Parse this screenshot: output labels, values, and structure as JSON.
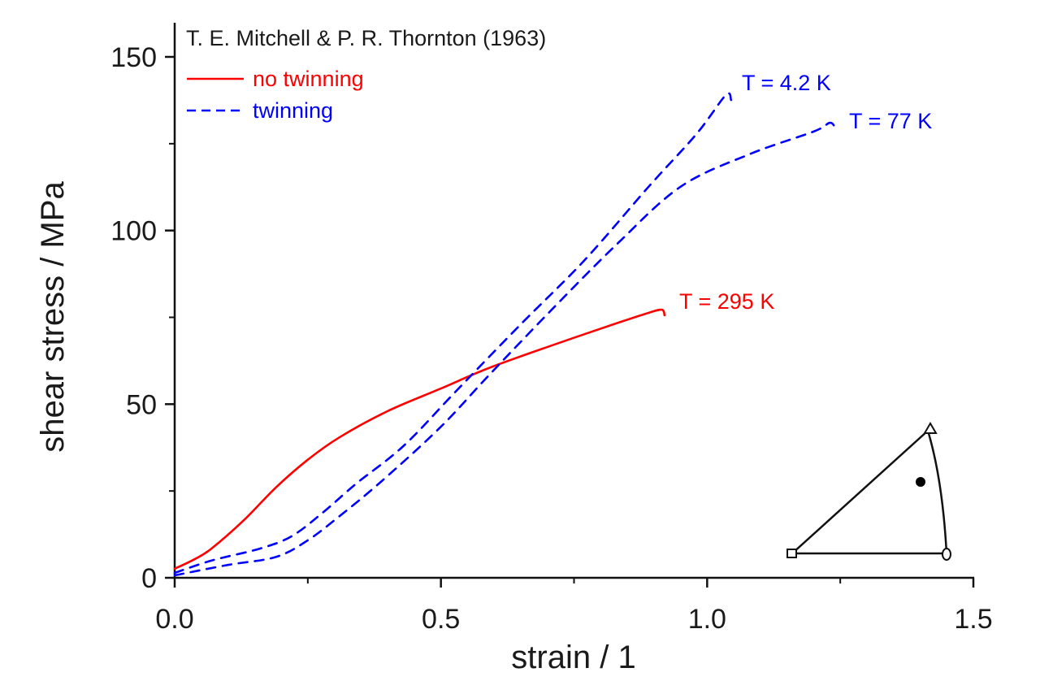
{
  "chart_data": {
    "type": "line",
    "title": "",
    "source_note": "T. E. Mitchell & P. R. Thornton (1963)",
    "xlabel": "strain / 1",
    "ylabel": "shear stress / MPa",
    "xlim": [
      0,
      1.5
    ],
    "ylim": [
      0,
      150
    ],
    "x_major_ticks": [
      0.0,
      0.5,
      1.0,
      1.5
    ],
    "x_tick_labels": [
      "0.0",
      "0.5",
      "1.0",
      "1.5"
    ],
    "x_minor_ticks": [
      0.25,
      0.75,
      1.25
    ],
    "y_major_ticks": [
      0,
      50,
      100,
      150
    ],
    "y_tick_labels": [
      "0",
      "50",
      "100",
      "150"
    ],
    "y_minor_ticks": [
      25,
      75,
      125
    ],
    "grid": false,
    "legend": {
      "placement": "top-left",
      "entries": [
        {
          "label": "no twinning",
          "style": "solid",
          "color": "#ff0000"
        },
        {
          "label": "twinning",
          "style": "dashed",
          "color": "#0000ff"
        }
      ]
    },
    "series": [
      {
        "name": "T = 295 K",
        "style": "solid",
        "color": "#ff0000",
        "x": [
          0.0,
          0.038,
          0.069,
          0.13,
          0.19,
          0.25,
          0.31,
          0.4,
          0.5,
          0.59,
          0.71,
          0.83,
          0.89,
          0.915,
          0.92
        ],
        "y": [
          2.6,
          5.4,
          8.4,
          16.6,
          26.0,
          34.0,
          40.5,
          48.0,
          54.5,
          60.4,
          67.0,
          73.3,
          76.3,
          77.2,
          75.6
        ]
      },
      {
        "name": "T = 4.2 K",
        "style": "dashed",
        "color": "#0000ff",
        "x": [
          0.0,
          0.07,
          0.16,
          0.22,
          0.28,
          0.34,
          0.43,
          0.53,
          0.65,
          0.77,
          0.89,
          0.98,
          1.035,
          1.045
        ],
        "y": [
          1.4,
          5.0,
          8.4,
          12.0,
          19.0,
          27.0,
          38.0,
          54.0,
          73.0,
          91.5,
          112.6,
          127.8,
          139.0,
          137.6
        ]
      },
      {
        "name": "T = 77 K",
        "style": "dashed",
        "color": "#0000ff",
        "x": [
          0.0,
          0.1,
          0.19,
          0.25,
          0.31,
          0.39,
          0.5,
          0.59,
          0.71,
          0.83,
          0.95,
          1.08,
          1.2,
          1.23,
          1.24
        ],
        "y": [
          0.7,
          3.7,
          6.0,
          10.8,
          17.8,
          28.0,
          43.5,
          58.3,
          77.5,
          96.0,
          112.6,
          122.0,
          128.5,
          131.0,
          129.7
        ]
      }
    ],
    "annotations": [
      {
        "text": "T = 4.2 K",
        "color": "#0000ff",
        "x": 1.06,
        "y": 142
      },
      {
        "text": "T = 77 K",
        "color": "#0000ff",
        "x": 1.27,
        "y": 128
      },
      {
        "text": "T = 295 K",
        "color": "#ff0000",
        "x": 0.95,
        "y": 77
      }
    ],
    "inset": {
      "description": "stereographic standard triangle with crystal orientation marker",
      "corner_markers": [
        "square",
        "triangle",
        "ellipse"
      ],
      "orientation_marker": "filled-circle"
    }
  }
}
